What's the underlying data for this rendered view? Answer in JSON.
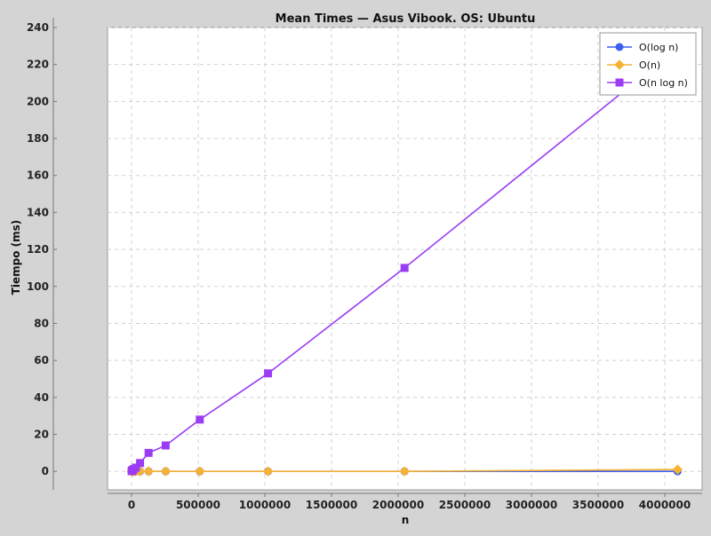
{
  "chart_data": {
    "type": "line",
    "title": "Mean Times — Asus Vibook. OS: Ubuntu",
    "xlabel": "n",
    "ylabel": "Tiempo (ms)",
    "xlim": [
      -180000,
      4280000
    ],
    "ylim": [
      -10,
      240
    ],
    "x_ticks": [
      0,
      500000,
      1000000,
      1500000,
      2000000,
      2500000,
      3000000,
      3500000,
      4000000
    ],
    "y_ticks": [
      0,
      20,
      40,
      60,
      80,
      100,
      120,
      140,
      160,
      180,
      200,
      220,
      240
    ],
    "grid": true,
    "legend_position": "top-right",
    "x": [
      1000,
      2000,
      4000,
      8000,
      16000,
      32000,
      64000,
      128000,
      256000,
      512000,
      1024000,
      2048000,
      4096000
    ],
    "series": [
      {
        "name": "O(log n)",
        "color": "#3d5ef0",
        "marker": "circle",
        "values": [
          0,
          0,
          0,
          0,
          0,
          0,
          0,
          0,
          0,
          0,
          0,
          0,
          0
        ]
      },
      {
        "name": "O(n)",
        "color": "#f5b335",
        "marker": "diamond",
        "values": [
          0,
          0,
          0,
          0,
          0,
          0,
          0,
          0,
          0,
          0,
          0,
          0,
          1
        ]
      },
      {
        "name": "O(n log n)",
        "color": "#9b3cf5",
        "marker": "square",
        "values": [
          0.1,
          0.2,
          0.4,
          0.7,
          1.2,
          2,
          4.5,
          10,
          14,
          28,
          53,
          110,
          229
        ]
      }
    ]
  }
}
